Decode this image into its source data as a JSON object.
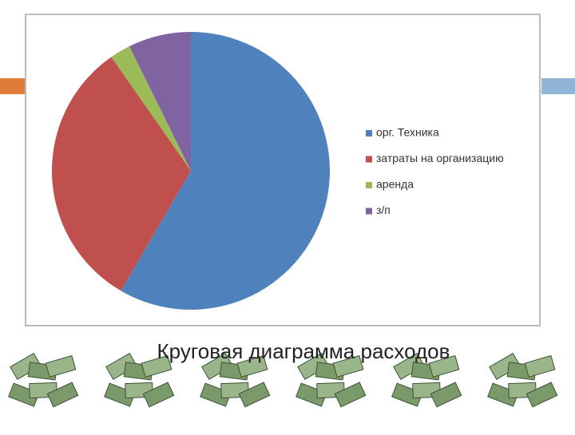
{
  "chart_data": {
    "type": "pie",
    "title": "Круговая диаграмма расходов",
    "categories": [
      "орг. Техника",
      "затраты на организацию",
      "аренда",
      "з/п"
    ],
    "values": [
      58.4,
      31.9,
      2.4,
      7.3
    ],
    "colors": [
      "#4f81bd",
      "#c0504d",
      "#9bbb59",
      "#8064a2"
    ],
    "legend": "right"
  }
}
